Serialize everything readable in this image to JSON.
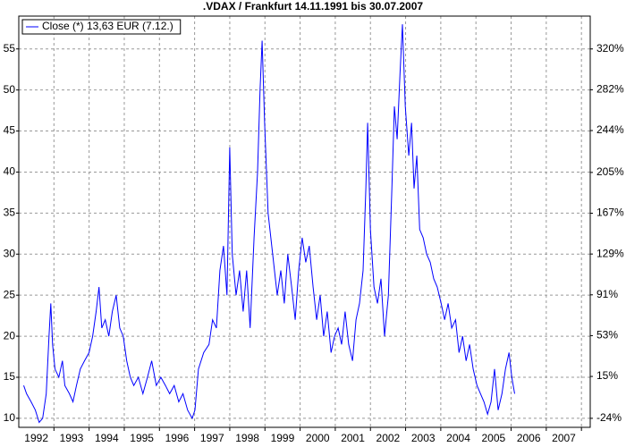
{
  "chart_data": {
    "type": "line",
    "title": ".VDAX / Frankfurt 14.11.1991 bis 30.07.2007",
    "series": [
      {
        "name": "Close (*) 13,63 EUR (7.12.)",
        "color": "#0000ff",
        "x": [
          1992.14,
          1992.22,
          1992.35,
          1992.47,
          1992.58,
          1992.68,
          1992.78,
          1992.86,
          1992.91,
          1992.96,
          1993.03,
          1993.14,
          1993.24,
          1993.31,
          1993.44,
          1993.54,
          1993.64,
          1993.75,
          1993.87,
          1994.0,
          1994.1,
          1994.2,
          1994.28,
          1994.36,
          1994.46,
          1994.56,
          1994.66,
          1994.77,
          1994.87,
          1994.97,
          1995.07,
          1995.17,
          1995.27,
          1995.4,
          1995.53,
          1995.66,
          1995.78,
          1995.91,
          1996.04,
          1996.17,
          1996.29,
          1996.42,
          1996.55,
          1996.67,
          1996.8,
          1996.93,
          1997.01,
          1997.11,
          1997.26,
          1997.41,
          1997.51,
          1997.62,
          1997.72,
          1997.82,
          1997.92,
          1998.0,
          1998.07,
          1998.18,
          1998.28,
          1998.38,
          1998.48,
          1998.58,
          1998.69,
          1998.79,
          1998.86,
          1998.92,
          1998.99,
          1999.09,
          1999.22,
          1999.35,
          1999.45,
          1999.55,
          1999.65,
          1999.76,
          1999.86,
          1999.96,
          2000.06,
          2000.16,
          2000.26,
          2000.37,
          2000.47,
          2000.57,
          2000.67,
          2000.77,
          2000.88,
          2000.98,
          2001.08,
          2001.18,
          2001.28,
          2001.38,
          2001.49,
          2001.59,
          2001.69,
          2001.79,
          2001.87,
          2001.92,
          2002.0,
          2002.1,
          2002.2,
          2002.3,
          2002.4,
          2002.51,
          2002.61,
          2002.68,
          2002.76,
          2002.84,
          2002.91,
          2002.99,
          2003.09,
          2003.17,
          2003.24,
          2003.32,
          2003.4,
          2003.5,
          2003.6,
          2003.7,
          2003.8,
          2003.9,
          2004.01,
          2004.11,
          2004.21,
          2004.31,
          2004.42,
          2004.52,
          2004.62,
          2004.72,
          2004.82,
          2004.92,
          2005.03,
          2005.13,
          2005.23,
          2005.33,
          2005.43,
          2005.53,
          2005.63,
          2005.74,
          2005.84,
          2005.94,
          2006.02,
          2006.1
        ],
        "values": [
          14,
          13,
          12,
          11,
          9.5,
          10,
          13,
          20,
          24,
          19,
          16,
          15,
          17,
          14,
          13,
          12,
          14,
          16,
          17,
          18,
          20,
          23,
          26,
          21,
          22,
          20,
          23,
          25,
          21,
          20,
          17,
          15,
          14,
          15,
          13,
          15,
          17,
          14,
          15,
          14,
          13,
          14,
          12,
          13,
          11,
          10,
          11,
          16,
          18,
          19,
          22,
          21,
          28,
          31,
          25,
          43,
          30,
          25,
          28,
          23,
          28,
          21,
          32,
          40,
          50,
          56,
          46,
          35,
          30,
          25,
          28,
          24,
          30,
          26,
          22,
          28,
          32,
          29,
          31,
          26,
          22,
          25,
          20,
          23,
          18,
          20,
          21,
          19,
          23,
          19,
          17,
          22,
          24,
          28,
          38,
          46,
          33,
          26,
          24,
          27,
          20,
          25,
          38,
          48,
          44,
          52,
          58,
          48,
          42,
          46,
          38,
          42,
          33,
          32,
          30,
          29,
          27,
          26,
          24,
          22,
          24,
          21,
          22,
          18,
          20,
          17,
          19,
          16,
          14,
          13,
          12,
          10.5,
          12,
          16,
          11,
          13,
          16,
          18,
          15,
          13
        ]
      }
    ],
    "xlim": [
      1992.0,
      2008.25
    ],
    "xticks": [
      1993,
      1994,
      1995,
      1996,
      1997,
      1998,
      1999,
      2000,
      2001,
      2002,
      2003,
      2004,
      2005,
      2006,
      2007,
      2008
    ],
    "xtick_labels": [
      {
        "value": 1992.5,
        "label": "1992"
      },
      {
        "value": 1993.5,
        "label": "1993"
      },
      {
        "value": 1994.5,
        "label": "1994"
      },
      {
        "value": 1995.5,
        "label": "1995"
      },
      {
        "value": 1996.5,
        "label": "1996"
      },
      {
        "value": 1997.5,
        "label": "1997"
      },
      {
        "value": 1998.5,
        "label": "1998"
      },
      {
        "value": 1999.5,
        "label": "1999"
      },
      {
        "value": 2000.5,
        "label": "2000"
      },
      {
        "value": 2001.5,
        "label": "2001"
      },
      {
        "value": 2002.5,
        "label": "2002"
      },
      {
        "value": 2003.5,
        "label": "2003"
      },
      {
        "value": 2004.5,
        "label": "2004"
      },
      {
        "value": 2005.5,
        "label": "2005"
      },
      {
        "value": 2006.5,
        "label": "2006"
      },
      {
        "value": 2007.5,
        "label": "2007"
      }
    ],
    "ylim": [
      8.9,
      59
    ],
    "yticks": [
      10,
      15,
      20,
      25,
      30,
      35,
      40,
      45,
      50,
      55
    ],
    "y2lim": [
      -32.4,
      350.6
    ],
    "y2ticks": [
      {
        "value": -24,
        "label": "-24%"
      },
      {
        "value": 15,
        "label": "15%"
      },
      {
        "value": 53,
        "label": "53%"
      },
      {
        "value": 91,
        "label": "91%"
      },
      {
        "value": 129,
        "label": "129%"
      },
      {
        "value": 167,
        "label": "167%"
      },
      {
        "value": 205,
        "label": "205%"
      },
      {
        "value": 244,
        "label": "244%"
      },
      {
        "value": 282,
        "label": "282%"
      },
      {
        "value": 320,
        "label": "320%"
      }
    ],
    "grid": true
  }
}
